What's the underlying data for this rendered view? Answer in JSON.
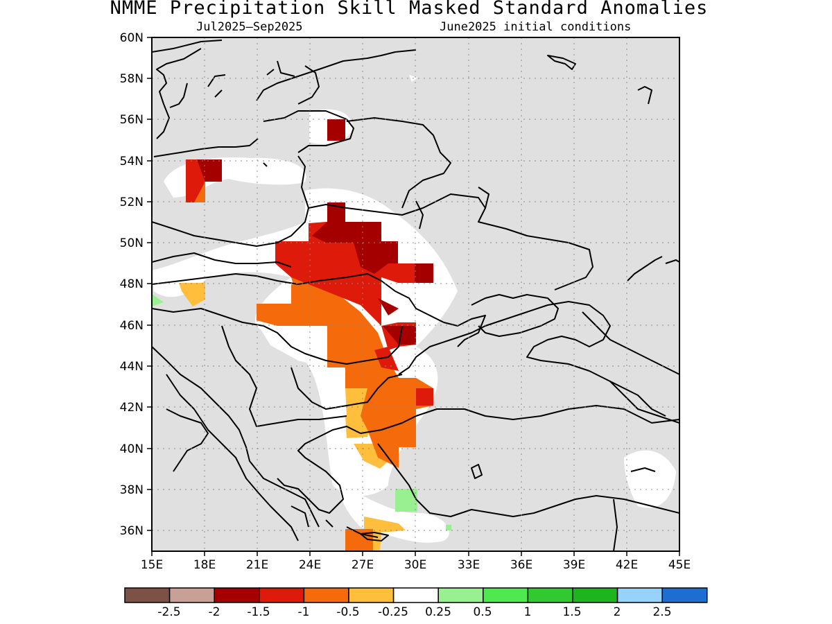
{
  "title": "NMME Precipitation Skill Masked Standard Anomalies",
  "subtitle_left": "Jul2025–Sep2025",
  "subtitle_right": "June2025 initial conditions",
  "map": {
    "lon_range": [
      15,
      45
    ],
    "lat_range": [
      35,
      60
    ],
    "lon_ticks": [
      "15E",
      "18E",
      "21E",
      "24E",
      "27E",
      "30E",
      "33E",
      "36E",
      "39E",
      "42E",
      "45E"
    ],
    "lat_ticks": [
      "36N",
      "38N",
      "40N",
      "42N",
      "44N",
      "46N",
      "48N",
      "50N",
      "52N",
      "54N",
      "56N",
      "58N",
      "60N"
    ],
    "masked_color": "#e0e0e0",
    "gridlines": "dotted"
  },
  "legend": {
    "colors": [
      "#7d5246",
      "#c8a096",
      "#a50000",
      "#de1a0a",
      "#f56a0a",
      "#ffbe3c",
      "#ffffff",
      "#98f090",
      "#50e850",
      "#32c832",
      "#1eb41e",
      "#96d2fa",
      "#1e6ed2"
    ],
    "labels": [
      "-2.5",
      "-2",
      "-1.5",
      "-1",
      "-0.5",
      "-0.25",
      "0.25",
      "0.5",
      "1",
      "1.5",
      "2",
      "2.5"
    ]
  }
}
